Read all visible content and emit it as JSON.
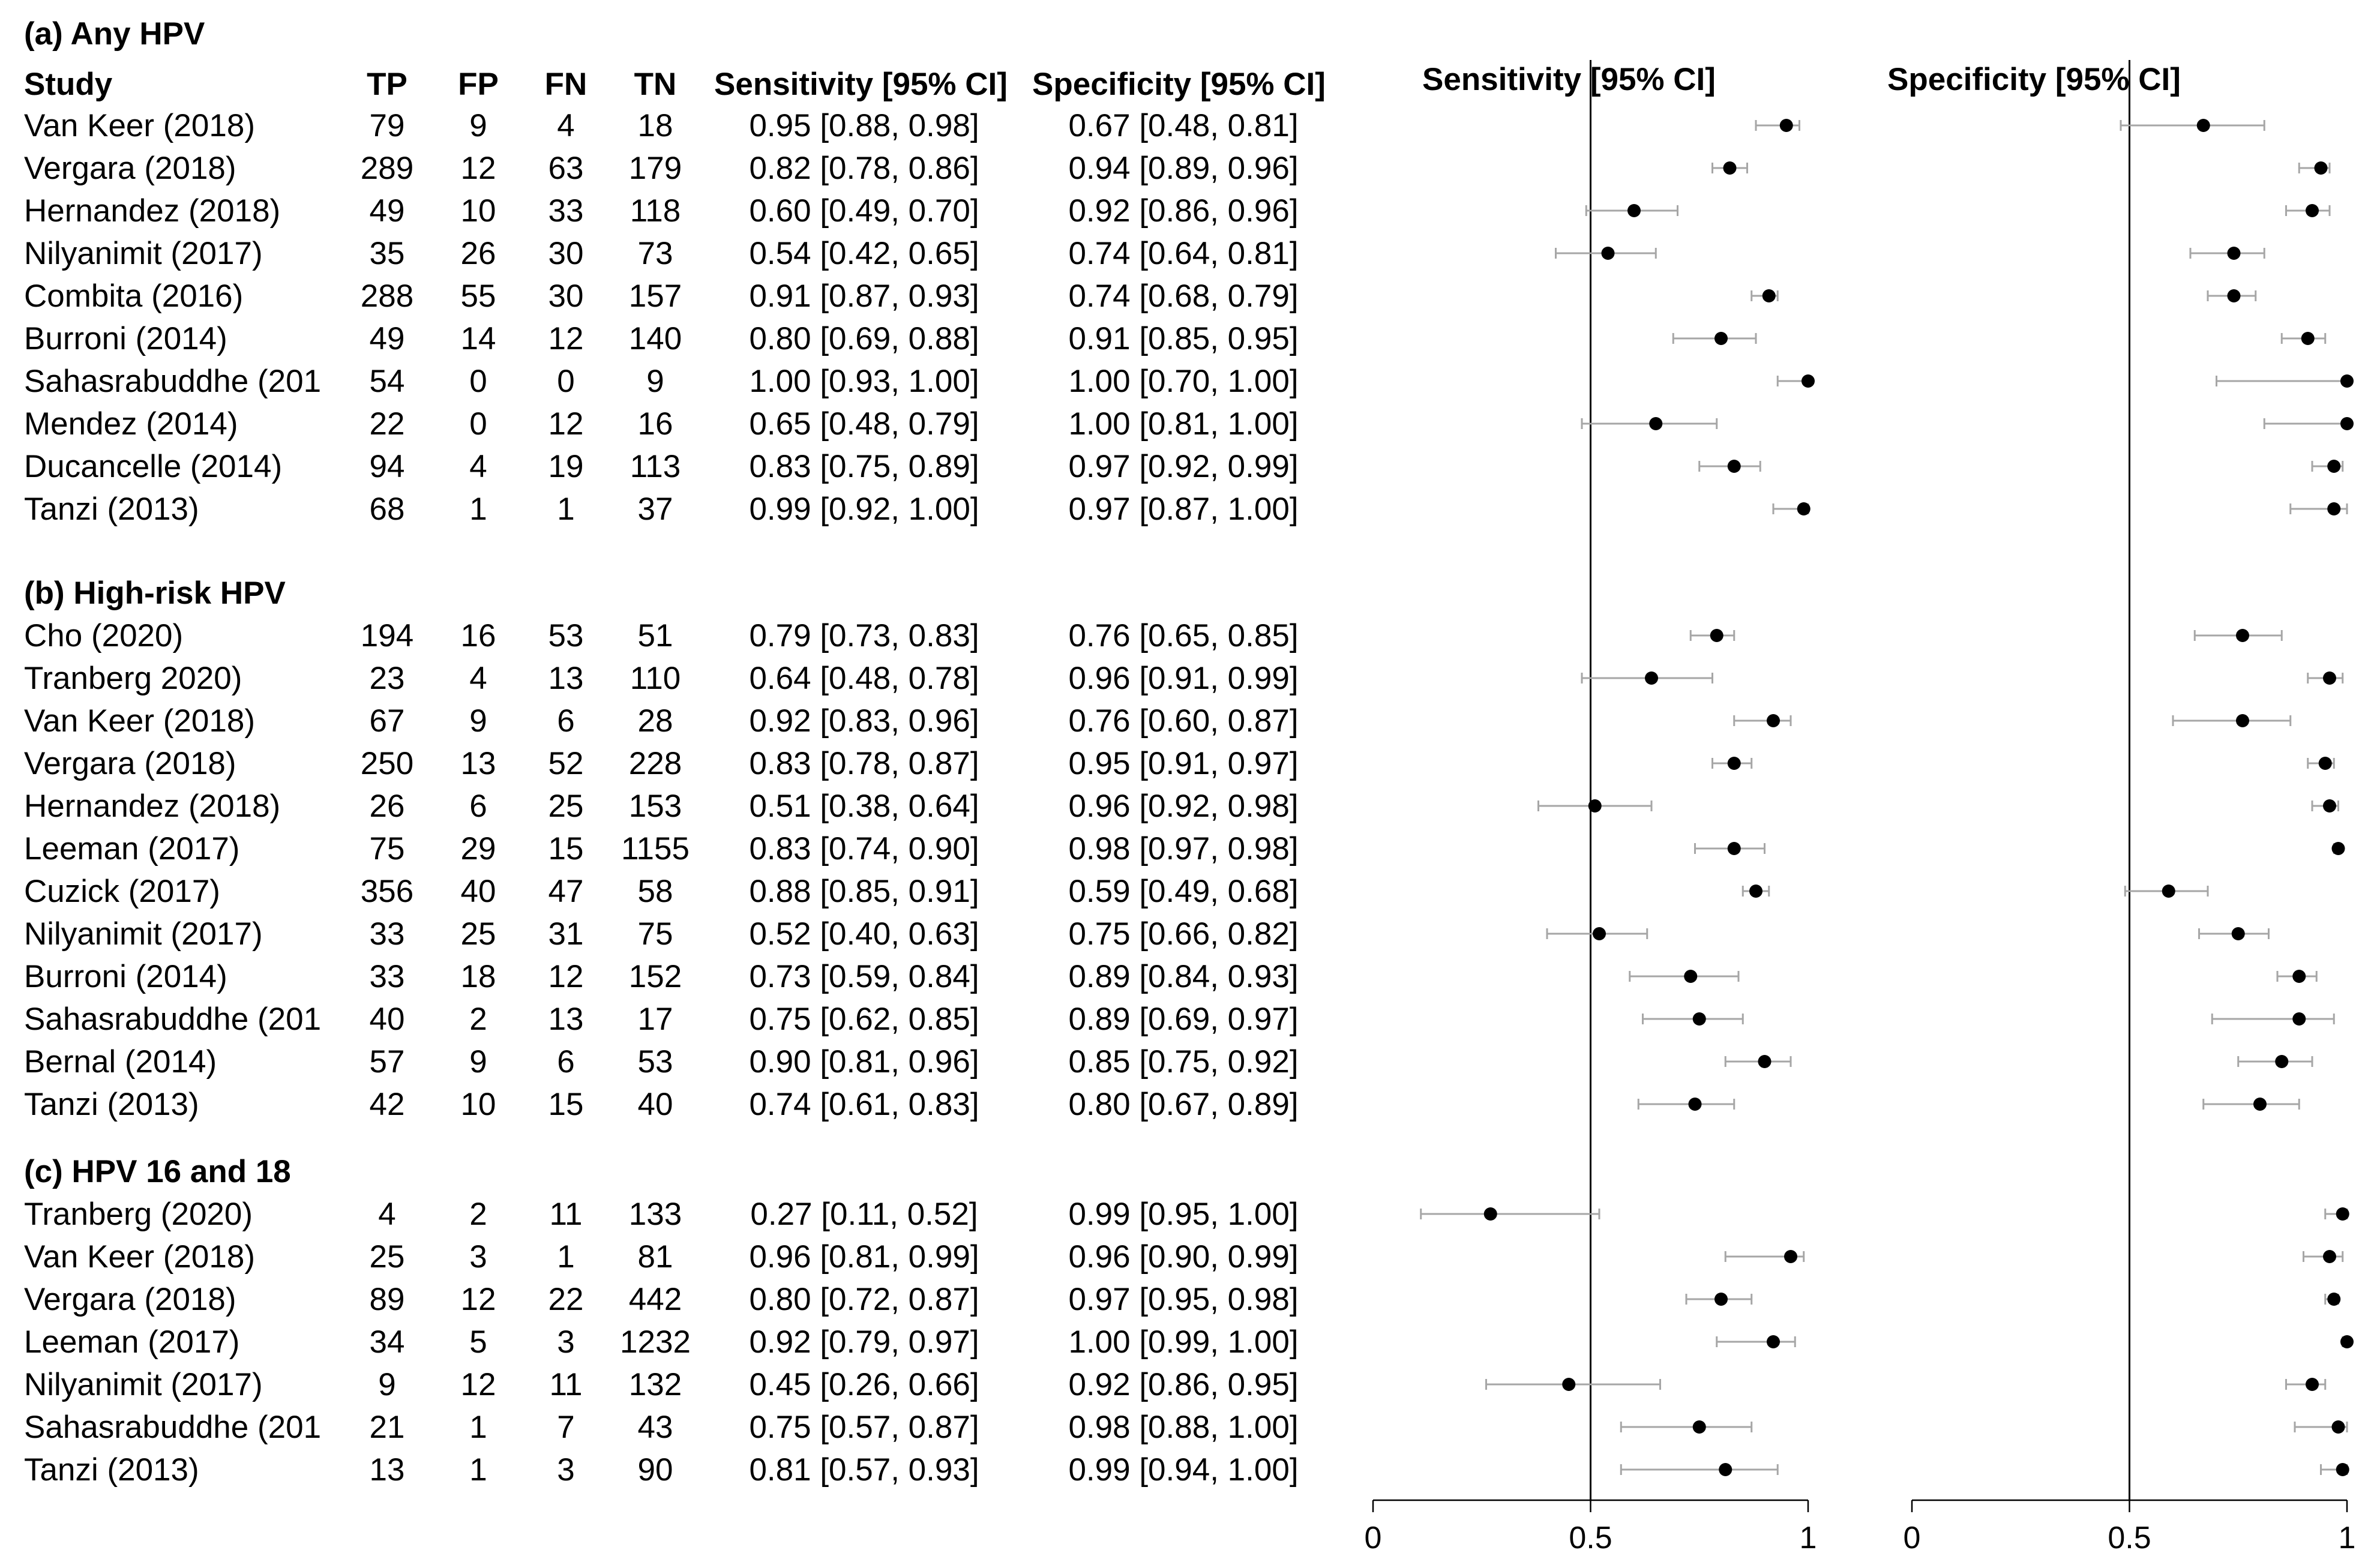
{
  "header": {
    "study": "Study",
    "tp": "TP",
    "fp": "FP",
    "fn": "FN",
    "tn": "TN",
    "sens": "Sensitivity [95% CI]",
    "spec": "Specificity [95% CI]",
    "plot_sens": "Sensitivity [95% CI]",
    "plot_spec": "Specificity [95% CI]"
  },
  "colors": {
    "point": "#000000",
    "ci_line": "#a6a6a6",
    "ref_line": "#000000"
  },
  "chart_data": {
    "type": "forest",
    "panels": [
      {
        "name": "Sensitivity [95% CI]",
        "xlim": [
          0,
          1
        ],
        "ticks": [
          "0",
          "0.5",
          "1"
        ],
        "tick_values": [
          0,
          0.5,
          1
        ],
        "ref_line": 0.5
      },
      {
        "name": "Specificity [95% CI]",
        "xlim": [
          0,
          1
        ],
        "ticks": [
          "0",
          "0.5",
          "1"
        ],
        "tick_values": [
          0,
          0.5,
          1
        ],
        "ref_line": 0.5
      }
    ],
    "sections": [
      {
        "title": "(a) Any HPV",
        "rows": [
          {
            "study": "Van Keer (2018)",
            "tp": "79",
            "fp": "9",
            "fn": "4",
            "tn": "18",
            "sens": 0.95,
            "sens_lo": 0.88,
            "sens_hi": 0.98,
            "sens_text": "0.95 [0.88, 0.98]",
            "spec": 0.67,
            "spec_lo": 0.48,
            "spec_hi": 0.81,
            "spec_text": "0.67 [0.48, 0.81]"
          },
          {
            "study": "Vergara  (2018)",
            "tp": "289",
            "fp": "12",
            "fn": "63",
            "tn": "179",
            "sens": 0.82,
            "sens_lo": 0.78,
            "sens_hi": 0.86,
            "sens_text": "0.82 [0.78, 0.86]",
            "spec": 0.94,
            "spec_lo": 0.89,
            "spec_hi": 0.96,
            "spec_text": "0.94 [0.89, 0.96]"
          },
          {
            "study": "Hernandez (2018)",
            "tp": "49",
            "fp": "10",
            "fn": "33",
            "tn": "118",
            "sens": 0.6,
            "sens_lo": 0.49,
            "sens_hi": 0.7,
            "sens_text": "0.60 [0.49, 0.70]",
            "spec": 0.92,
            "spec_lo": 0.86,
            "spec_hi": 0.96,
            "spec_text": "0.92 [0.86, 0.96]"
          },
          {
            "study": "Nilyanimit (2017)",
            "tp": "35",
            "fp": "26",
            "fn": "30",
            "tn": "73",
            "sens": 0.54,
            "sens_lo": 0.42,
            "sens_hi": 0.65,
            "sens_text": "0.54 [0.42, 0.65]",
            "spec": 0.74,
            "spec_lo": 0.64,
            "spec_hi": 0.81,
            "spec_text": "0.74 [0.64, 0.81]"
          },
          {
            "study": "Combita  (2016)",
            "tp": "288",
            "fp": "55",
            "fn": "30",
            "tn": "157",
            "sens": 0.91,
            "sens_lo": 0.87,
            "sens_hi": 0.93,
            "sens_text": "0.91 [0.87, 0.93]",
            "spec": 0.74,
            "spec_lo": 0.68,
            "spec_hi": 0.79,
            "spec_text": "0.74 [0.68, 0.79]"
          },
          {
            "study": "Burroni (2014)",
            "tp": "49",
            "fp": "14",
            "fn": "12",
            "tn": "140",
            "sens": 0.8,
            "sens_lo": 0.69,
            "sens_hi": 0.88,
            "sens_text": "0.80 [0.69, 0.88]",
            "spec": 0.91,
            "spec_lo": 0.85,
            "spec_hi": 0.95,
            "spec_text": "0.91 [0.85, 0.95]"
          },
          {
            "study": "Sahasrabuddhe (201",
            "tp": "54",
            "fp": "0",
            "fn": "0",
            "tn": "9",
            "sens": 1.0,
            "sens_lo": 0.93,
            "sens_hi": 1.0,
            "sens_text": "1.00 [0.93, 1.00]",
            "spec": 1.0,
            "spec_lo": 0.7,
            "spec_hi": 1.0,
            "spec_text": "1.00 [0.70, 1.00]"
          },
          {
            "study": "Mendez (2014)",
            "tp": "22",
            "fp": "0",
            "fn": "12",
            "tn": "16",
            "sens": 0.65,
            "sens_lo": 0.48,
            "sens_hi": 0.79,
            "sens_text": "0.65 [0.48, 0.79]",
            "spec": 1.0,
            "spec_lo": 0.81,
            "spec_hi": 1.0,
            "spec_text": "1.00 [0.81, 1.00]"
          },
          {
            "study": "Ducancelle (2014)",
            "tp": "94",
            "fp": "4",
            "fn": "19",
            "tn": "113",
            "sens": 0.83,
            "sens_lo": 0.75,
            "sens_hi": 0.89,
            "sens_text": "0.83 [0.75, 0.89]",
            "spec": 0.97,
            "spec_lo": 0.92,
            "spec_hi": 0.99,
            "spec_text": "0.97 [0.92, 0.99]"
          },
          {
            "study": "Tanzi (2013)",
            "tp": "68",
            "fp": "1",
            "fn": "1",
            "tn": "37",
            "sens": 0.99,
            "sens_lo": 0.92,
            "sens_hi": 1.0,
            "sens_text": "0.99 [0.92, 1.00]",
            "spec": 0.97,
            "spec_lo": 0.87,
            "spec_hi": 1.0,
            "spec_text": "0.97 [0.87, 1.00]"
          }
        ]
      },
      {
        "title": "(b) High-risk HPV",
        "rows": [
          {
            "study": "Cho (2020)",
            "tp": "194",
            "fp": "16",
            "fn": "53",
            "tn": "51",
            "sens": 0.79,
            "sens_lo": 0.73,
            "sens_hi": 0.83,
            "sens_text": "0.79 [0.73, 0.83]",
            "spec": 0.76,
            "spec_lo": 0.65,
            "spec_hi": 0.85,
            "spec_text": "0.76 [0.65, 0.85]"
          },
          {
            "study": "Tranberg 2020)",
            "tp": "23",
            "fp": "4",
            "fn": "13",
            "tn": "110",
            "sens": 0.64,
            "sens_lo": 0.48,
            "sens_hi": 0.78,
            "sens_text": "0.64 [0.48, 0.78]",
            "spec": 0.96,
            "spec_lo": 0.91,
            "spec_hi": 0.99,
            "spec_text": "0.96 [0.91, 0.99]"
          },
          {
            "study": "Van Keer (2018)",
            "tp": "67",
            "fp": "9",
            "fn": "6",
            "tn": "28",
            "sens": 0.92,
            "sens_lo": 0.83,
            "sens_hi": 0.96,
            "sens_text": "0.92 [0.83, 0.96]",
            "spec": 0.76,
            "spec_lo": 0.6,
            "spec_hi": 0.87,
            "spec_text": "0.76 [0.60, 0.87]"
          },
          {
            "study": "Vergara  (2018)",
            "tp": "250",
            "fp": "13",
            "fn": "52",
            "tn": "228",
            "sens": 0.83,
            "sens_lo": 0.78,
            "sens_hi": 0.87,
            "sens_text": "0.83 [0.78, 0.87]",
            "spec": 0.95,
            "spec_lo": 0.91,
            "spec_hi": 0.97,
            "spec_text": "0.95 [0.91, 0.97]"
          },
          {
            "study": "Hernandez (2018)",
            "tp": "26",
            "fp": "6",
            "fn": "25",
            "tn": "153",
            "sens": 0.51,
            "sens_lo": 0.38,
            "sens_hi": 0.64,
            "sens_text": "0.51 [0.38, 0.64]",
            "spec": 0.96,
            "spec_lo": 0.92,
            "spec_hi": 0.98,
            "spec_text": "0.96 [0.92, 0.98]"
          },
          {
            "study": "Leeman (2017)",
            "tp": "75",
            "fp": "29",
            "fn": "15",
            "tn": "1155",
            "sens": 0.83,
            "sens_lo": 0.74,
            "sens_hi": 0.9,
            "sens_text": "0.83 [0.74, 0.90]",
            "spec": 0.98,
            "spec_lo": 0.97,
            "spec_hi": 0.98,
            "spec_text": "0.98 [0.97, 0.98]"
          },
          {
            "study": "Cuzick (2017)",
            "tp": "356",
            "fp": "40",
            "fn": "47",
            "tn": "58",
            "sens": 0.88,
            "sens_lo": 0.85,
            "sens_hi": 0.91,
            "sens_text": "0.88 [0.85, 0.91]",
            "spec": 0.59,
            "spec_lo": 0.49,
            "spec_hi": 0.68,
            "spec_text": "0.59 [0.49, 0.68]"
          },
          {
            "study": "Nilyanimit (2017)",
            "tp": "33",
            "fp": "25",
            "fn": "31",
            "tn": "75",
            "sens": 0.52,
            "sens_lo": 0.4,
            "sens_hi": 0.63,
            "sens_text": "0.52 [0.40, 0.63]",
            "spec": 0.75,
            "spec_lo": 0.66,
            "spec_hi": 0.82,
            "spec_text": "0.75 [0.66, 0.82]"
          },
          {
            "study": "Burroni (2014)",
            "tp": "33",
            "fp": "18",
            "fn": "12",
            "tn": "152",
            "sens": 0.73,
            "sens_lo": 0.59,
            "sens_hi": 0.84,
            "sens_text": "0.73 [0.59, 0.84]",
            "spec": 0.89,
            "spec_lo": 0.84,
            "spec_hi": 0.93,
            "spec_text": "0.89 [0.84, 0.93]"
          },
          {
            "study": "Sahasrabuddhe (201",
            "tp": "40",
            "fp": "2",
            "fn": "13",
            "tn": "17",
            "sens": 0.75,
            "sens_lo": 0.62,
            "sens_hi": 0.85,
            "sens_text": "0.75 [0.62, 0.85]",
            "spec": 0.89,
            "spec_lo": 0.69,
            "spec_hi": 0.97,
            "spec_text": "0.89 [0.69, 0.97]"
          },
          {
            "study": "Bernal (2014)",
            "tp": "57",
            "fp": "9",
            "fn": "6",
            "tn": "53",
            "sens": 0.9,
            "sens_lo": 0.81,
            "sens_hi": 0.96,
            "sens_text": "0.90 [0.81, 0.96]",
            "spec": 0.85,
            "spec_lo": 0.75,
            "spec_hi": 0.92,
            "spec_text": "0.85 [0.75, 0.92]"
          },
          {
            "study": "Tanzi (2013)",
            "tp": "42",
            "fp": "10",
            "fn": "15",
            "tn": "40",
            "sens": 0.74,
            "sens_lo": 0.61,
            "sens_hi": 0.83,
            "sens_text": "0.74 [0.61, 0.83]",
            "spec": 0.8,
            "spec_lo": 0.67,
            "spec_hi": 0.89,
            "spec_text": "0.80 [0.67, 0.89]"
          }
        ]
      },
      {
        "title": "(c) HPV 16 and 18",
        "rows": [
          {
            "study": "Tranberg (2020)",
            "tp": "4",
            "fp": "2",
            "fn": "11",
            "tn": "133",
            "sens": 0.27,
            "sens_lo": 0.11,
            "sens_hi": 0.52,
            "sens_text": "0.27 [0.11, 0.52]",
            "spec": 0.99,
            "spec_lo": 0.95,
            "spec_hi": 1.0,
            "spec_text": "0.99 [0.95, 1.00]"
          },
          {
            "study": "Van Keer (2018)",
            "tp": "25",
            "fp": "3",
            "fn": "1",
            "tn": "81",
            "sens": 0.96,
            "sens_lo": 0.81,
            "sens_hi": 0.99,
            "sens_text": "0.96 [0.81, 0.99]",
            "spec": 0.96,
            "spec_lo": 0.9,
            "spec_hi": 0.99,
            "spec_text": "0.96 [0.90, 0.99]"
          },
          {
            "study": "Vergara  (2018)",
            "tp": "89",
            "fp": "12",
            "fn": "22",
            "tn": "442",
            "sens": 0.8,
            "sens_lo": 0.72,
            "sens_hi": 0.87,
            "sens_text": "0.80 [0.72, 0.87]",
            "spec": 0.97,
            "spec_lo": 0.95,
            "spec_hi": 0.98,
            "spec_text": "0.97 [0.95, 0.98]"
          },
          {
            "study": "Leeman (2017)",
            "tp": "34",
            "fp": "5",
            "fn": "3",
            "tn": "1232",
            "sens": 0.92,
            "sens_lo": 0.79,
            "sens_hi": 0.97,
            "sens_text": "0.92 [0.79, 0.97]",
            "spec": 1.0,
            "spec_lo": 0.99,
            "spec_hi": 1.0,
            "spec_text": "1.00 [0.99, 1.00]"
          },
          {
            "study": "Nilyanimit (2017)",
            "tp": "9",
            "fp": "12",
            "fn": "11",
            "tn": "132",
            "sens": 0.45,
            "sens_lo": 0.26,
            "sens_hi": 0.66,
            "sens_text": "0.45 [0.26, 0.66]",
            "spec": 0.92,
            "spec_lo": 0.86,
            "spec_hi": 0.95,
            "spec_text": "0.92 [0.86, 0.95]"
          },
          {
            "study": "Sahasrabuddhe (201",
            "tp": "21",
            "fp": "1",
            "fn": "7",
            "tn": "43",
            "sens": 0.75,
            "sens_lo": 0.57,
            "sens_hi": 0.87,
            "sens_text": "0.75 [0.57, 0.87]",
            "spec": 0.98,
            "spec_lo": 0.88,
            "spec_hi": 1.0,
            "spec_text": "0.98 [0.88, 1.00]"
          },
          {
            "study": "Tanzi (2013)",
            "tp": "13",
            "fp": "1",
            "fn": "3",
            "tn": "90",
            "sens": 0.81,
            "sens_lo": 0.57,
            "sens_hi": 0.93,
            "sens_text": "0.81 [0.57, 0.93]",
            "spec": 0.99,
            "spec_lo": 0.94,
            "spec_hi": 1.0,
            "spec_text": "0.99 [0.94, 1.00]"
          }
        ]
      }
    ]
  }
}
